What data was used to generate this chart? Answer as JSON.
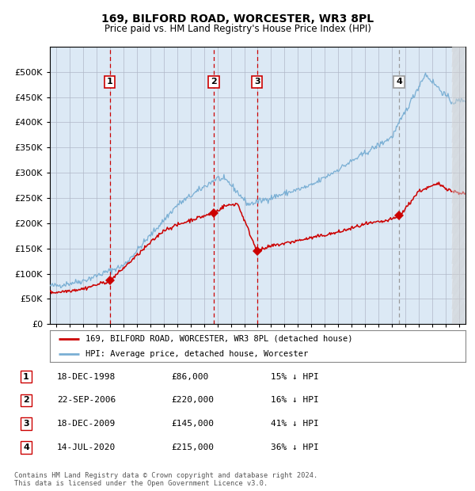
{
  "title": "169, BILFORD ROAD, WORCESTER, WR3 8PL",
  "subtitle": "Price paid vs. HM Land Registry's House Price Index (HPI)",
  "background_color": "#dce9f5",
  "plot_bg_color": "#dce9f5",
  "red_line_color": "#cc0000",
  "blue_line_color": "#7aafd4",
  "sale_marker_color": "#cc0000",
  "legend_label_red": "169, BILFORD ROAD, WORCESTER, WR3 8PL (detached house)",
  "legend_label_blue": "HPI: Average price, detached house, Worcester",
  "footer": "Contains HM Land Registry data © Crown copyright and database right 2024.\nThis data is licensed under the Open Government Licence v3.0.",
  "table_entries": [
    {
      "num": 1,
      "date": "18-DEC-1998",
      "price": "£86,000",
      "hpi": "15% ↓ HPI"
    },
    {
      "num": 2,
      "date": "22-SEP-2006",
      "price": "£220,000",
      "hpi": "16% ↓ HPI"
    },
    {
      "num": 3,
      "date": "18-DEC-2009",
      "price": "£145,000",
      "hpi": "41% ↓ HPI"
    },
    {
      "num": 4,
      "date": "14-JUL-2020",
      "price": "£215,000",
      "hpi": "36% ↓ HPI"
    }
  ],
  "sale_dates_decimal": [
    1998.96,
    2006.72,
    2009.96,
    2020.54
  ],
  "sale_prices": [
    86000,
    220000,
    145000,
    215000
  ],
  "ylim": [
    0,
    550000
  ],
  "yticks": [
    0,
    50000,
    100000,
    150000,
    200000,
    250000,
    300000,
    350000,
    400000,
    450000,
    500000
  ],
  "xlim_start": 1994.5,
  "xlim_end": 2025.5
}
